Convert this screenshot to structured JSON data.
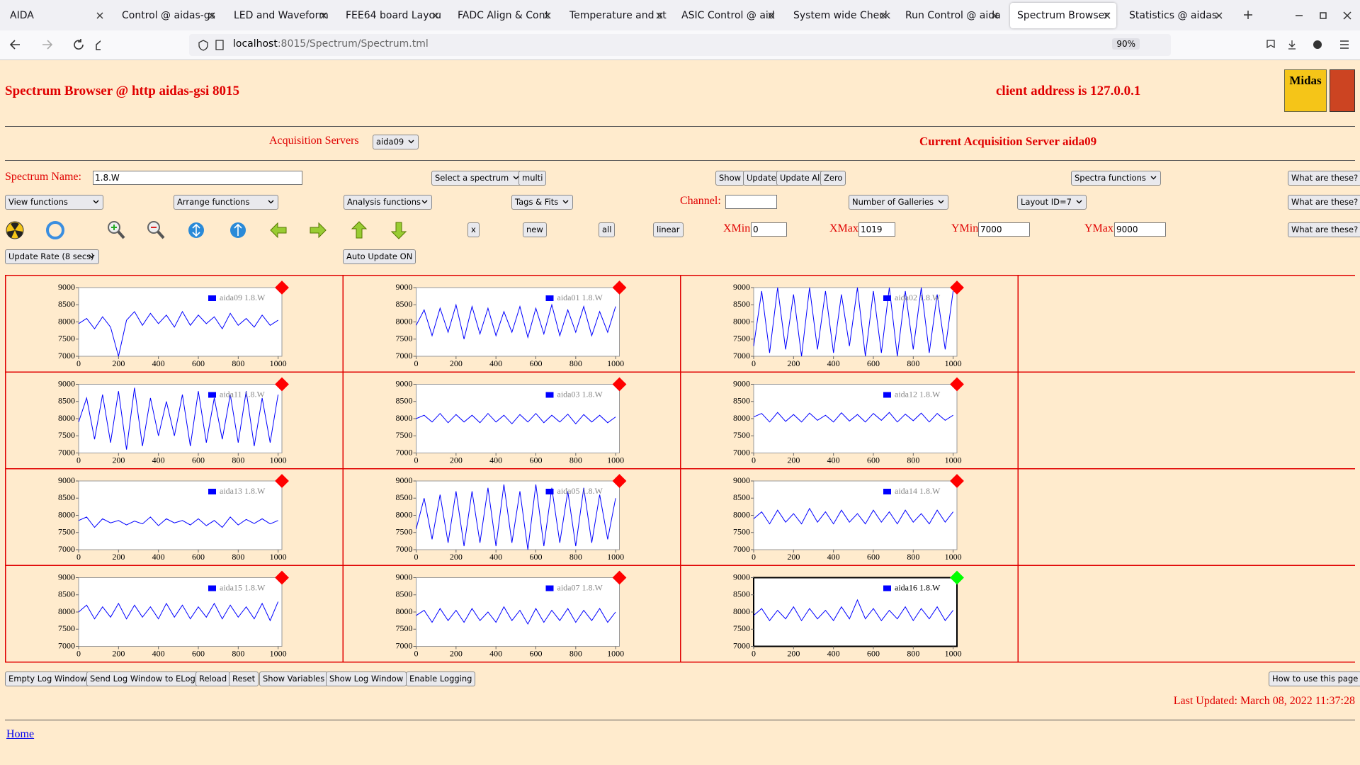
{
  "browser": {
    "tabs": [
      "AIDA",
      "Control @ aidas-gs",
      "LED and Waveform",
      "FEE64 board Layou",
      "FADC Align & Cont",
      "Temperature and st",
      "ASIC Control @ aid",
      "System wide Check",
      "Run Control @ aida",
      "Spectrum Browser",
      "Statistics @ aidas-"
    ],
    "active_tab": 9,
    "url_host": "localhost",
    "url_path": ":8015/Spectrum/Spectrum.tml",
    "zoom": "90%"
  },
  "header": {
    "title": "Spectrum Browser @ http aidas-gsi 8015",
    "client": "client address is 127.0.0.1",
    "logo": "Midas"
  },
  "servers": {
    "label": "Acquisition Servers",
    "selected": "aida09",
    "current": "Current Acquisition Server aida09"
  },
  "controls": {
    "spectrum_name_label": "Spectrum Name:",
    "spectrum_name": "1.8.W",
    "select_spectrum": "Select a spectrum",
    "multi": "multi",
    "show": "Show",
    "update": "Update",
    "update_all": "Update All",
    "zero": "Zero",
    "spectra_functions": "Spectra functions",
    "what": "What are these?",
    "view_functions": "View functions",
    "arrange_functions": "Arrange functions",
    "analysis_functions": "Analysis functions",
    "tags_fits": "Tags & Fits",
    "channel_label": "Channel:",
    "channel": "",
    "number_of_galleries": "Number of Galleries",
    "layout": "Layout ID=7",
    "x": "x",
    "new": "new",
    "all": "all",
    "linear": "linear",
    "xmin_label": "XMin",
    "xmin": "0",
    "xmax_label": "XMax",
    "xmax": "1019",
    "ymin_label": "YMin",
    "ymin": "7000",
    "ymax_label": "YMax",
    "ymax": "9000",
    "update_rate": "Update Rate (8 secs)",
    "auto_update": "Auto Update ON"
  },
  "axes": {
    "xlim": [
      0,
      1019
    ],
    "ylim": [
      7000,
      9000
    ],
    "xticks": [
      0,
      200,
      400,
      600,
      800,
      1000
    ],
    "yticks": [
      7000,
      7500,
      8000,
      8500,
      9000
    ],
    "line_color": "#0000ff",
    "x": [
      0,
      40,
      80,
      120,
      160,
      200,
      240,
      280,
      320,
      360,
      400,
      440,
      480,
      520,
      560,
      600,
      640,
      680,
      720,
      760,
      800,
      840,
      880,
      920,
      960,
      1000
    ]
  },
  "galleries": [
    {
      "legend": "aida09 1.8.W",
      "status_color": "#ff0000",
      "selected": false,
      "values": [
        7950,
        8100,
        7800,
        8150,
        7850,
        7000,
        8050,
        8300,
        7900,
        8250,
        7950,
        8200,
        7850,
        8300,
        7900,
        8200,
        7950,
        8150,
        7800,
        8250,
        7900,
        8100,
        7850,
        8200,
        7900,
        8050
      ]
    },
    {
      "legend": "aida01 1.8.W",
      "status_color": "#ff0000",
      "selected": false,
      "values": [
        7900,
        8350,
        7600,
        8400,
        7700,
        8500,
        7500,
        8450,
        7650,
        8400,
        7600,
        8300,
        7700,
        8450,
        7550,
        8400,
        7650,
        8500,
        7600,
        8350,
        7700,
        8450,
        7600,
        8300,
        7700,
        8450
      ]
    },
    {
      "legend": "aida02 1.8.W",
      "status_color": "#ff0000",
      "selected": false,
      "values": [
        7300,
        8900,
        7100,
        9000,
        7200,
        8800,
        7000,
        9000,
        7200,
        8900,
        7100,
        8800,
        7300,
        9000,
        7000,
        8900,
        7100,
        9000,
        7000,
        8900,
        7200,
        9000,
        7100,
        8800,
        7200,
        8900
      ]
    },
    {
      "legend": "aida11 1.8.W",
      "status_color": "#ff0000",
      "selected": false,
      "values": [
        7900,
        8600,
        7400,
        8700,
        7300,
        8800,
        7100,
        8900,
        7200,
        8600,
        7500,
        8500,
        7500,
        8700,
        7200,
        8800,
        7300,
        8600,
        7400,
        8700,
        7300,
        8800,
        7200,
        8600,
        7300,
        8700
      ]
    },
    {
      "legend": "aida03 1.8.W",
      "status_color": "#ff0000",
      "selected": false,
      "values": [
        8000,
        8100,
        7900,
        8150,
        7880,
        8120,
        7900,
        8100,
        7880,
        8150,
        7900,
        8100,
        7850,
        8120,
        7900,
        8150,
        7880,
        8100,
        7900,
        8130,
        7850,
        8120,
        7900,
        8100,
        7880,
        8050
      ]
    },
    {
      "legend": "aida12 1.8.W",
      "status_color": "#ff0000",
      "selected": false,
      "values": [
        8050,
        8150,
        7900,
        8180,
        7920,
        8120,
        7900,
        8160,
        7950,
        8100,
        7900,
        8170,
        7930,
        8120,
        7900,
        8150,
        7950,
        8180,
        7900,
        8130,
        7940,
        8160,
        7900,
        8150,
        7950,
        8100
      ]
    },
    {
      "legend": "aida13 1.8.W",
      "status_color": "#ff0000",
      "selected": false,
      "values": [
        7850,
        7950,
        7650,
        7900,
        7780,
        7850,
        7720,
        7830,
        7750,
        7950,
        7700,
        7900,
        7780,
        7850,
        7720,
        7900,
        7700,
        7850,
        7650,
        7950,
        7720,
        7880,
        7760,
        7900,
        7750,
        7850
      ]
    },
    {
      "legend": "aida05 1.8.W",
      "status_color": "#ff0000",
      "selected": false,
      "values": [
        7600,
        8500,
        7300,
        8600,
        7200,
        8700,
        7100,
        8700,
        7200,
        8800,
        7100,
        8900,
        7200,
        8700,
        7000,
        8900,
        7100,
        8800,
        7200,
        8700,
        7100,
        8800,
        7200,
        8600,
        7300,
        8500
      ]
    },
    {
      "legend": "aida14 1.8.W",
      "status_color": "#ff0000",
      "selected": false,
      "values": [
        7900,
        8100,
        7750,
        8150,
        7800,
        8050,
        7750,
        8200,
        7800,
        8100,
        7750,
        8150,
        7800,
        8050,
        7750,
        8150,
        7800,
        8100,
        7750,
        8150,
        7800,
        8050,
        7750,
        8150,
        7800,
        8100
      ]
    },
    {
      "legend": "aida15 1.8.W",
      "status_color": "#ff0000",
      "selected": false,
      "values": [
        8000,
        8200,
        7800,
        8150,
        7850,
        8250,
        7800,
        8200,
        7850,
        8150,
        7800,
        8250,
        7850,
        8200,
        7800,
        8150,
        7850,
        8250,
        7800,
        8200,
        7850,
        8150,
        7800,
        8250,
        7750,
        8300
      ]
    },
    {
      "legend": "aida07 1.8.W",
      "status_color": "#ff0000",
      "selected": false,
      "values": [
        7900,
        8050,
        7700,
        8100,
        7750,
        8050,
        7700,
        8100,
        7750,
        8000,
        7700,
        8150,
        7750,
        8050,
        7650,
        8100,
        7700,
        8050,
        7750,
        8100,
        7700,
        8050,
        7750,
        8100,
        7700,
        8000
      ]
    },
    {
      "legend": "aida16 1.8.W",
      "status_color": "#00ff00",
      "selected": true,
      "values": [
        7900,
        8100,
        7750,
        8050,
        7800,
        8150,
        7750,
        8100,
        7800,
        8050,
        7750,
        8150,
        7800,
        8350,
        7800,
        8100,
        7750,
        8050,
        7800,
        8150,
        7750,
        8100,
        7800,
        8150,
        7750,
        8050
      ]
    }
  ],
  "footer": {
    "buttons": [
      "Empty Log Window",
      "Send Log Window to ELog",
      "Reload",
      "Reset",
      "Show Variables",
      "Show Log Window",
      "Enable Logging"
    ],
    "help": "How to use this page",
    "last_updated": "Last Updated: March 08, 2022 11:37:28",
    "home": "Home"
  }
}
